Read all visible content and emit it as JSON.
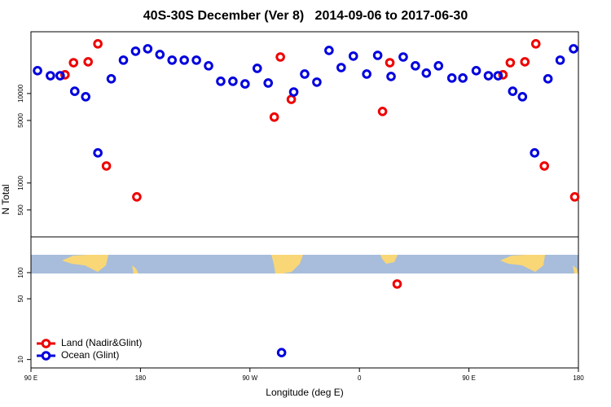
{
  "chart_data": [
    {
      "type": "scatter",
      "title": "40S-30S December (Ver 8)   2014-09-06 to 2017-06-30",
      "ylabel": "N Total",
      "log_y": true,
      "xlim": [
        90,
        540
      ],
      "ylim": [
        250,
        49000
      ],
      "yticks": [
        500,
        1000,
        5000,
        10000
      ],
      "series": [
        {
          "color": "#ee0000",
          "x": [
            118,
            125,
            137,
            145,
            152,
            177,
            290,
            295,
            304,
            379,
            385,
            478,
            484,
            496,
            505,
            512,
            537
          ],
          "values": [
            16200,
            22100,
            22600,
            35900,
            1550,
            700,
            5450,
            25600,
            8600,
            6300,
            22100,
            16200,
            22100,
            22600,
            35900,
            1550,
            700
          ]
        },
        {
          "color": "#0000dd",
          "x": [
            95.4,
            106,
            114,
            126,
            135,
            145,
            156,
            166,
            176,
            186,
            196,
            206,
            216,
            226,
            236,
            246,
            256,
            266,
            276,
            285,
            306,
            315,
            325,
            335,
            345,
            355,
            366,
            375,
            386,
            396,
            406,
            415,
            425,
            436,
            445,
            456,
            466,
            474,
            486,
            494,
            504,
            515,
            525,
            536
          ],
          "values": [
            18000,
            15800,
            15800,
            10600,
            9200,
            2170,
            14600,
            23600,
            29700,
            31600,
            27300,
            23600,
            23600,
            23600,
            20400,
            13700,
            13700,
            12800,
            19100,
            13100,
            10400,
            16500,
            13400,
            30300,
            19500,
            26200,
            16500,
            26700,
            15500,
            25600,
            20400,
            16900,
            20400,
            14900,
            14900,
            18000,
            15800,
            15800,
            10600,
            9200,
            2170,
            14600,
            23600,
            31600
          ]
        }
      ]
    },
    {
      "type": "scatter",
      "xlabel": "Longitude (deg E)",
      "log_y": true,
      "legend": "bottom-left",
      "xlim": [
        90,
        540
      ],
      "ylim": [
        8,
        258
      ],
      "yticks": [
        10,
        50,
        100
      ],
      "xticks": [
        {
          "value": 90,
          "label": "90 E"
        },
        180,
        {
          "value": 270,
          "label": "90 W"
        },
        {
          "value": 360,
          "label": "0"
        },
        {
          "value": 450,
          "label": "90 E"
        },
        {
          "value": 540,
          "label": "180"
        }
      ],
      "series": [
        {
          "name": "Land (Nadir&Glint)",
          "color": "#ee0000",
          "x": [
            391
          ],
          "values": [
            74
          ]
        },
        {
          "name": "Ocean (Glint)",
          "color": "#0000dd",
          "x": [
            296
          ],
          "values": [
            12
          ]
        }
      ]
    }
  ]
}
